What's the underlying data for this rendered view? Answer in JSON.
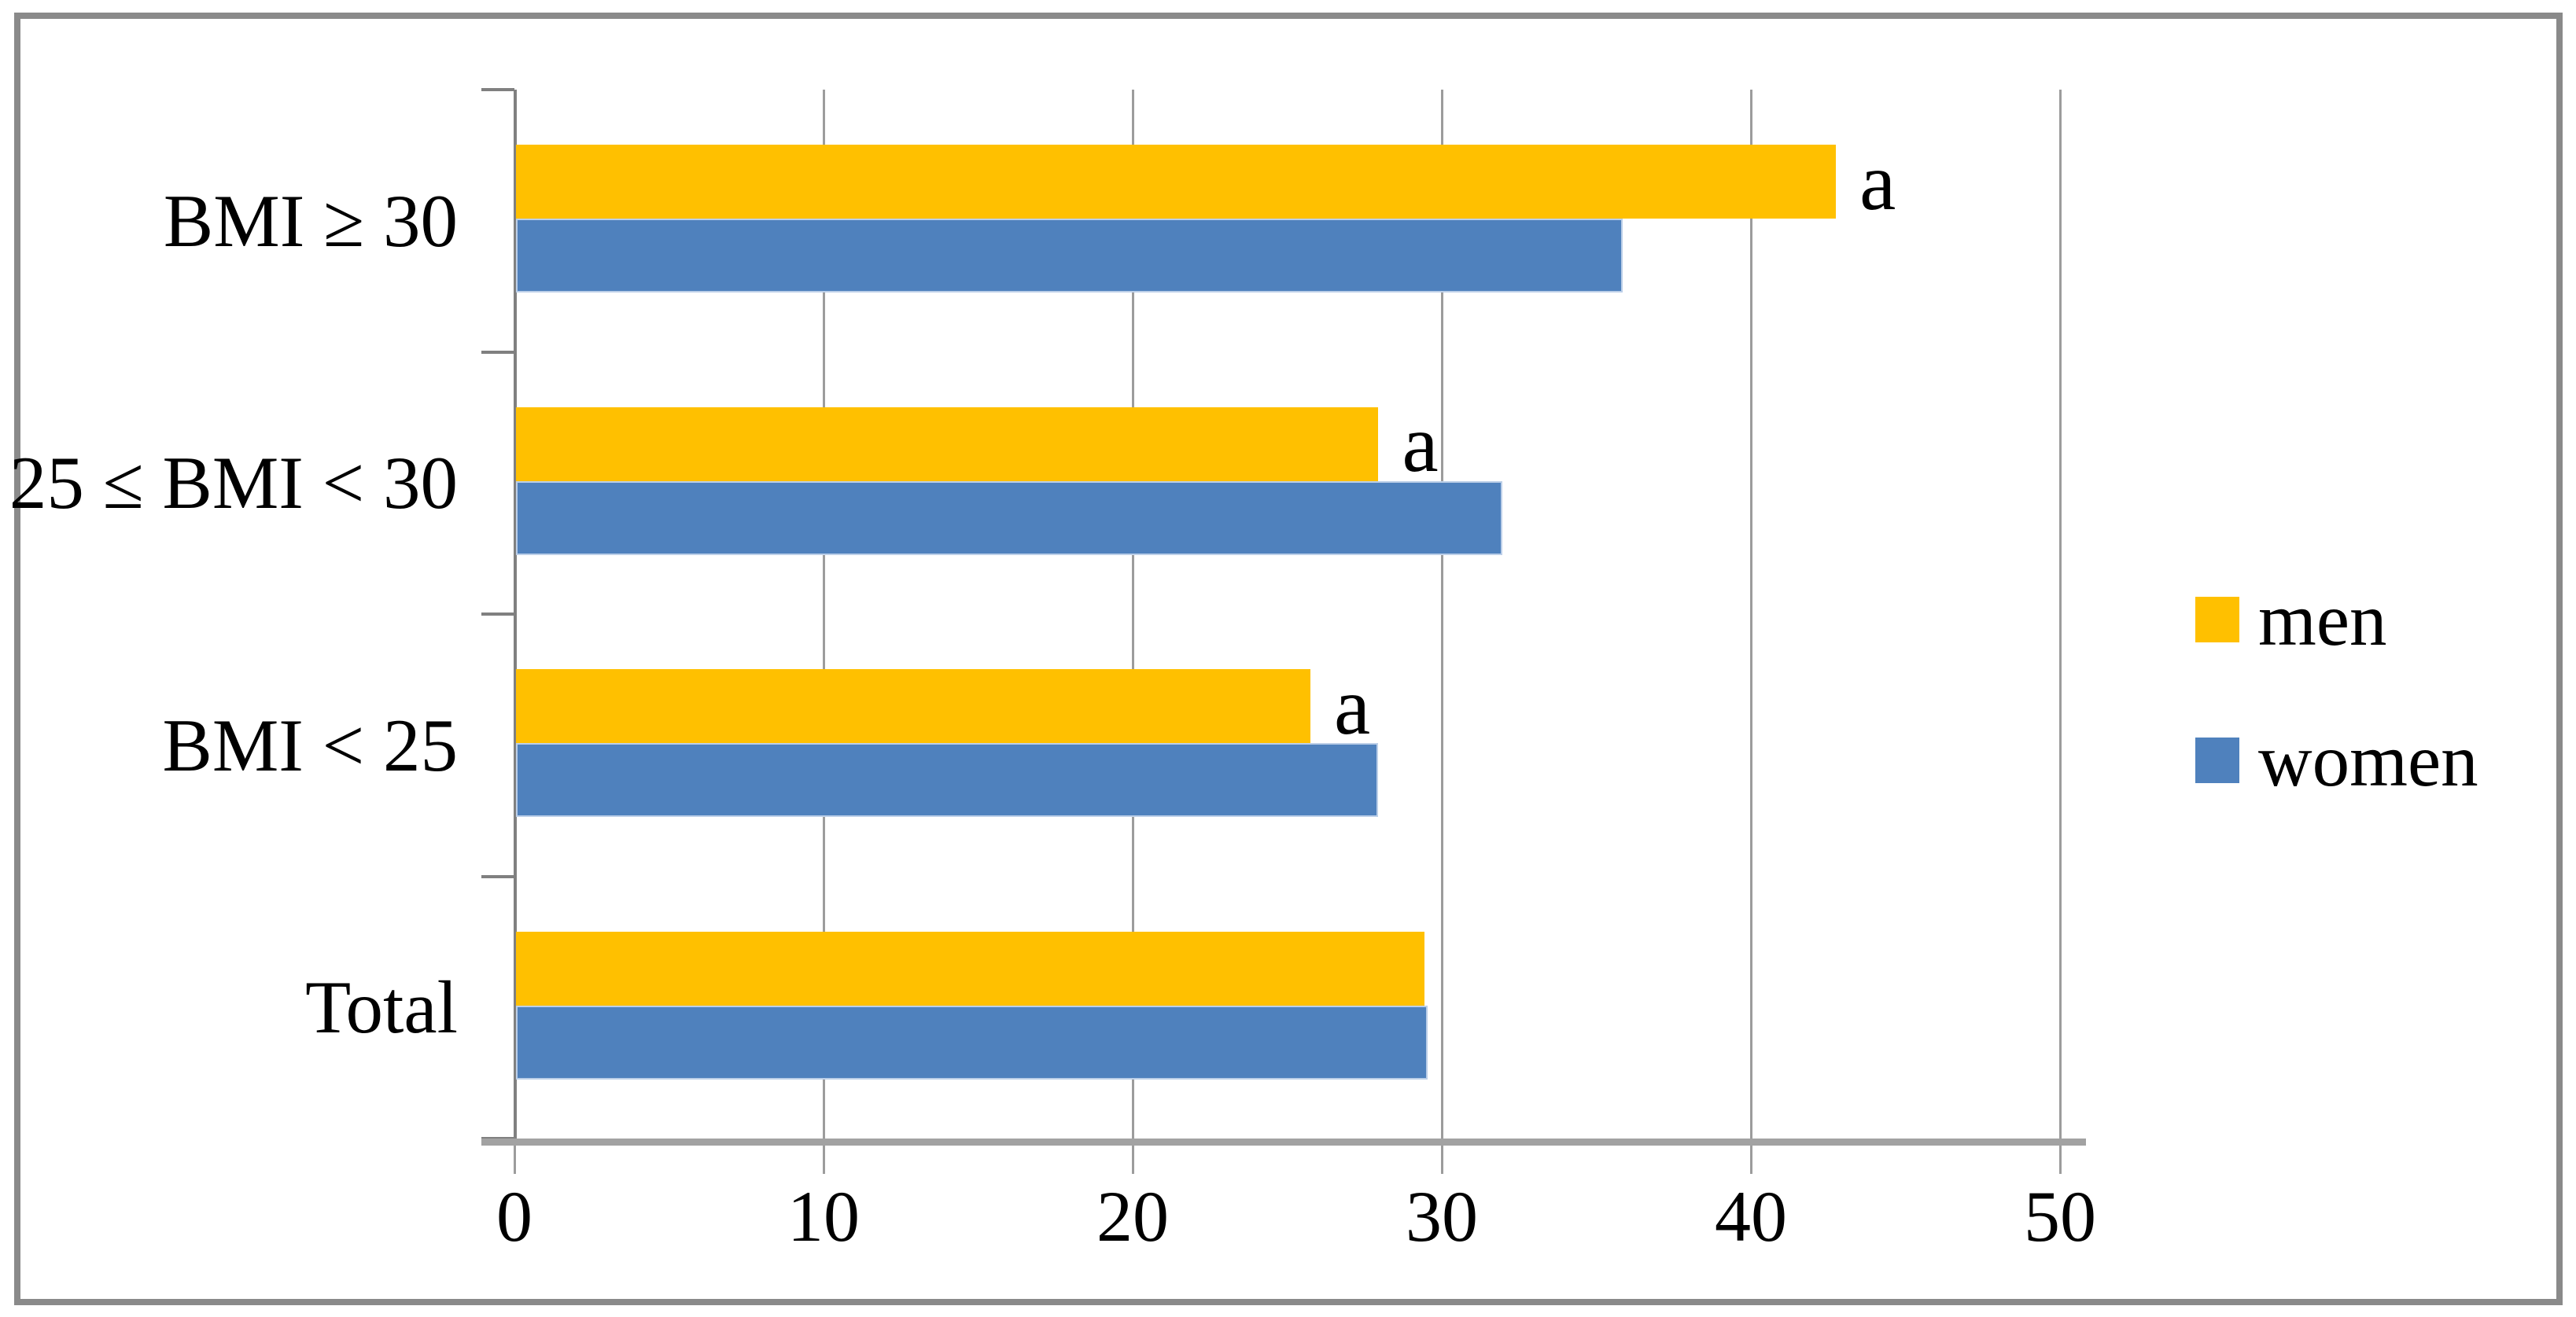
{
  "chart_data": {
    "type": "bar",
    "orientation": "horizontal",
    "title": "",
    "categories": [
      "BMI ≥ 30",
      "25 ≤ BMI < 30",
      "BMI < 25",
      "Total"
    ],
    "series": [
      {
        "name": "men",
        "color": "#FFC000",
        "values": [
          42.7,
          27.9,
          25.7,
          29.4
        ],
        "annotations": [
          "a",
          "a",
          "a",
          ""
        ]
      },
      {
        "name": "women",
        "color": "#4F81BD",
        "values": [
          35.8,
          31.9,
          27.9,
          29.5
        ],
        "annotations": [
          "",
          "",
          "",
          ""
        ]
      }
    ],
    "x_axis": {
      "min": 0,
      "max": 50,
      "tick_interval": 10,
      "tick_labels": [
        "0",
        "10",
        "20",
        "30",
        "40",
        "50"
      ]
    },
    "y_axis_label": "",
    "x_axis_label": "",
    "grid": true,
    "legend_position": "right"
  },
  "legend": {
    "items": [
      {
        "label": "men",
        "color": "#FFC000"
      },
      {
        "label": "women",
        "color": "#4F81BD"
      }
    ]
  },
  "colors": {
    "men_bar": "#FFC000",
    "women_bar": "#4F81BD",
    "women_bar_edge": "#bccfe8",
    "gridline": "#9c9c9c",
    "axis": "#a2a2a2",
    "frame_border": "#8a8a8a",
    "background": "#ffffff",
    "text": "#000000"
  }
}
